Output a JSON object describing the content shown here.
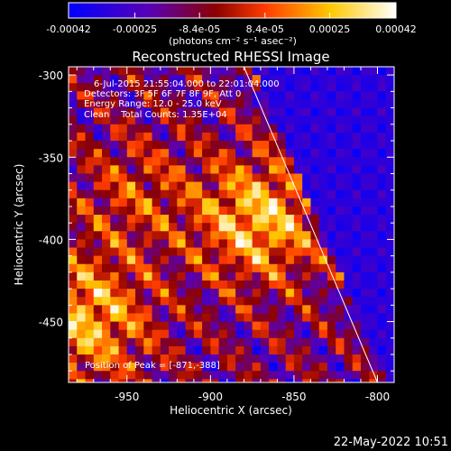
{
  "colorbar": {
    "tick_labels": [
      "-0.00042",
      "-0.00025",
      "-8.4e-05",
      "8.4e-05",
      "0.00025",
      "0.00042"
    ],
    "tick_values": [
      -0.00042,
      -0.00025,
      -8.4e-05,
      8.4e-05,
      0.00025,
      0.00042
    ],
    "range": [
      -0.00042,
      0.00042
    ],
    "units_label": "(photons cm⁻² s⁻¹ asec⁻²)",
    "colors": [
      "#0000ff",
      "#5a00b4",
      "#8c0000",
      "#ff3c00",
      "#ffc800",
      "#ffffff"
    ]
  },
  "chart_data": {
    "type": "heatmap",
    "title": "Reconstructed RHESSI Image",
    "xlabel": "Heliocentric X (arcsec)",
    "ylabel": "Heliocentric Y (arcsec)",
    "xlim": [
      -985,
      -790
    ],
    "ylim": [
      -487,
      -295
    ],
    "x_ticks": [
      -950,
      -900,
      -850,
      -800
    ],
    "y_ticks": [
      -300,
      -350,
      -400,
      -450
    ],
    "x_tick_labels": [
      "-950",
      "-900",
      "-850",
      "-800"
    ],
    "y_tick_labels": [
      "-300",
      "-350",
      "-400",
      "-450"
    ],
    "limb_line": [
      [
        -880,
        -295
      ],
      [
        -800,
        -487
      ]
    ],
    "peak": [
      -871,
      -388
    ]
  },
  "annotations": {
    "line1": "6-Jul-2015 21:55:04.000 to 22:01:04.000",
    "line2": "Detectors: 3F 5F 6F 7F 8F 9F, Att 0",
    "line3": "Energy Range: 12.0 - 25.0 keV",
    "line4": "Clean    Total Counts: 1.35E+04",
    "peak_label": "Position of Peak = [-871,-388]"
  },
  "footer": {
    "timestamp": "22-May-2022 10:51"
  }
}
